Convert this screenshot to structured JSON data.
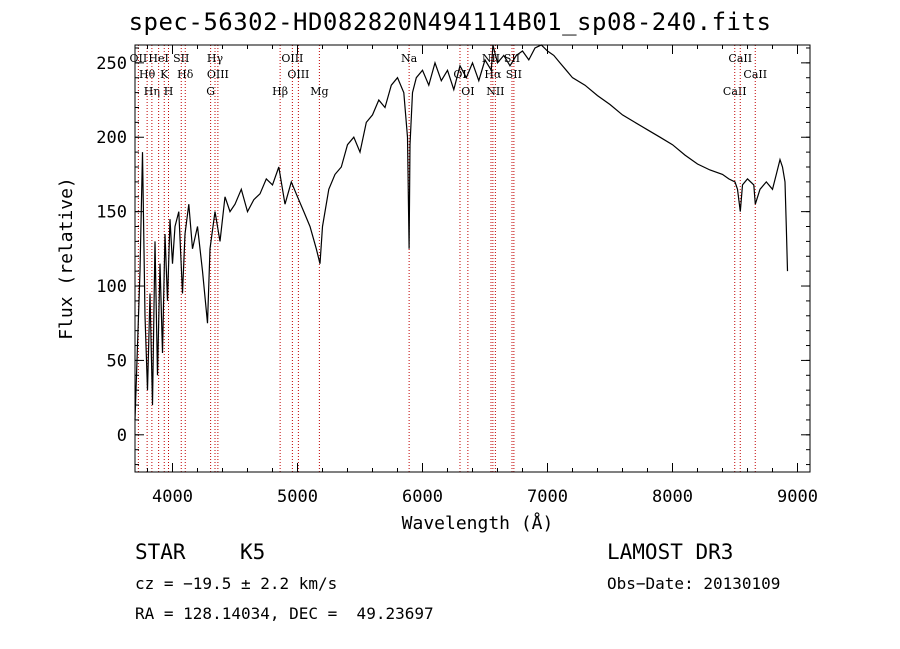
{
  "chart_data": {
    "type": "line",
    "title": "spec-56302-HD082820N494114B01_sp08-240.fits",
    "xlabel": "Wavelength (Å)",
    "ylabel": "Flux (relative)",
    "xlim": [
      3700,
      9100
    ],
    "ylim": [
      -25,
      262
    ],
    "x_ticks": [
      4000,
      5000,
      6000,
      7000,
      8000,
      9000
    ],
    "y_ticks": [
      0,
      50,
      100,
      150,
      200,
      250
    ],
    "series": [
      {
        "name": "spectrum",
        "x": [
          3700,
          3720,
          3740,
          3760,
          3780,
          3800,
          3820,
          3840,
          3860,
          3880,
          3900,
          3920,
          3940,
          3960,
          3980,
          4000,
          4020,
          4050,
          4080,
          4100,
          4130,
          4160,
          4200,
          4240,
          4280,
          4300,
          4340,
          4380,
          4420,
          4460,
          4500,
          4550,
          4600,
          4650,
          4700,
          4750,
          4800,
          4850,
          4900,
          4950,
          5000,
          5050,
          5100,
          5150,
          5180,
          5200,
          5250,
          5300,
          5350,
          5400,
          5450,
          5500,
          5550,
          5600,
          5650,
          5700,
          5750,
          5800,
          5850,
          5880,
          5893,
          5900,
          5920,
          5950,
          6000,
          6050,
          6100,
          6150,
          6200,
          6250,
          6300,
          6350,
          6400,
          6450,
          6500,
          6550,
          6563,
          6600,
          6650,
          6700,
          6750,
          6800,
          6850,
          6900,
          6950,
          7000,
          7050,
          7100,
          7150,
          7200,
          7300,
          7400,
          7500,
          7600,
          7700,
          7800,
          7900,
          8000,
          8100,
          8200,
          8300,
          8400,
          8450,
          8500,
          8520,
          8542,
          8560,
          8600,
          8650,
          8662,
          8700,
          8750,
          8800,
          8830,
          8860,
          8880,
          8900,
          8910,
          8920
        ],
        "values": [
          10,
          60,
          110,
          190,
          80,
          30,
          95,
          20,
          130,
          40,
          115,
          55,
          135,
          90,
          145,
          115,
          140,
          150,
          95,
          135,
          155,
          125,
          140,
          110,
          75,
          125,
          150,
          130,
          160,
          150,
          155,
          165,
          150,
          158,
          162,
          172,
          168,
          180,
          155,
          170,
          160,
          150,
          140,
          125,
          115,
          140,
          165,
          175,
          180,
          195,
          200,
          190,
          210,
          215,
          225,
          220,
          235,
          240,
          230,
          200,
          125,
          195,
          230,
          240,
          245,
          235,
          250,
          238,
          245,
          232,
          248,
          240,
          250,
          238,
          252,
          245,
          262,
          250,
          255,
          248,
          255,
          258,
          252,
          260,
          262,
          258,
          255,
          250,
          245,
          240,
          235,
          228,
          222,
          215,
          210,
          205,
          200,
          195,
          188,
          182,
          178,
          175,
          172,
          170,
          165,
          150,
          168,
          172,
          168,
          155,
          165,
          170,
          165,
          175,
          185,
          180,
          170,
          140,
          110
        ]
      }
    ],
    "line_marks": [
      {
        "label": "OII",
        "wavelength": 3727
      },
      {
        "label": "Hθ",
        "wavelength": 3797
      },
      {
        "label": "Hη",
        "wavelength": 3835
      },
      {
        "label": "HeI",
        "wavelength": 3889
      },
      {
        "label": "K",
        "wavelength": 3934
      },
      {
        "label": "H",
        "wavelength": 3968
      },
      {
        "label": "SII",
        "wavelength": 4070
      },
      {
        "label": "Hδ",
        "wavelength": 4102
      },
      {
        "label": "G",
        "wavelength": 4305
      },
      {
        "label": "Hγ",
        "wavelength": 4340
      },
      {
        "label": "OIII",
        "wavelength": 4363
      },
      {
        "label": "Hβ",
        "wavelength": 4861
      },
      {
        "label": "OIII",
        "wavelength": 4959
      },
      {
        "label": "OIII",
        "wavelength": 5007
      },
      {
        "label": "Mg",
        "wavelength": 5175
      },
      {
        "label": "Na",
        "wavelength": 5893
      },
      {
        "label": "OI",
        "wavelength": 6300
      },
      {
        "label": "OI",
        "wavelength": 6363
      },
      {
        "label": "NII",
        "wavelength": 6548
      },
      {
        "label": "Hα",
        "wavelength": 6563
      },
      {
        "label": "NII",
        "wavelength": 6583
      },
      {
        "label": "SII",
        "wavelength": 6716
      },
      {
        "label": "SII",
        "wavelength": 6731
      },
      {
        "label": "CaII",
        "wavelength": 8498
      },
      {
        "label": "CaII",
        "wavelength": 8542
      },
      {
        "label": "CaII",
        "wavelength": 8662
      }
    ],
    "line_color": "#000000",
    "mark_color": "#c00000"
  },
  "info": {
    "object_class": "STAR",
    "subclass": "K5",
    "survey": "LAMOST DR3",
    "cz": "cz = −19.5 ± 2.2 km/s",
    "obs_date": "Obs−Date: 20130109",
    "coords": "RA = 128.14034, DEC =  49.23697"
  }
}
